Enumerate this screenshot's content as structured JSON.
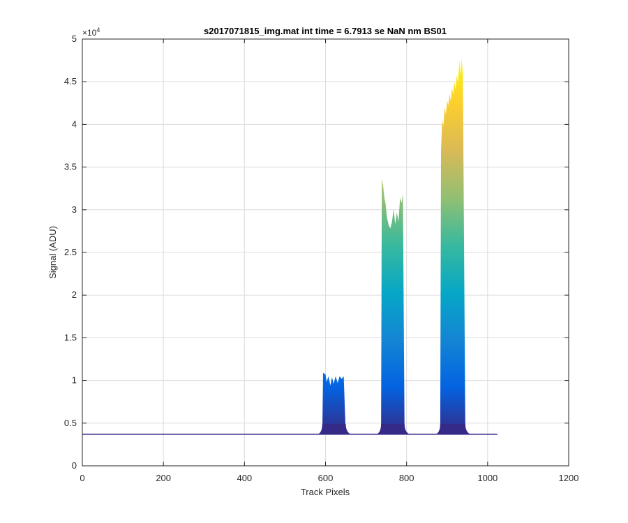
{
  "chart_data": {
    "type": "area",
    "title": "s2017071815_img.mat int time = 6.7913 se  NaN nm BS01",
    "xlabel": "Track Pixels",
    "ylabel": "Signal (ADU)",
    "xlim": [
      0,
      1200
    ],
    "ylim": [
      0,
      50000
    ],
    "y_exponent_label": "×10",
    "y_exponent_power": "4",
    "x_ticks": [
      {
        "value": 0,
        "label": "0"
      },
      {
        "value": 200,
        "label": "200"
      },
      {
        "value": 400,
        "label": "400"
      },
      {
        "value": 600,
        "label": "600"
      },
      {
        "value": 800,
        "label": "800"
      },
      {
        "value": 1000,
        "label": "1000"
      },
      {
        "value": 1200,
        "label": "1200"
      }
    ],
    "y_ticks": [
      {
        "value": 0,
        "label": "0"
      },
      {
        "value": 5000,
        "label": "0.5"
      },
      {
        "value": 10000,
        "label": "1"
      },
      {
        "value": 15000,
        "label": "1.5"
      },
      {
        "value": 20000,
        "label": "2"
      },
      {
        "value": 25000,
        "label": "2.5"
      },
      {
        "value": 30000,
        "label": "3"
      },
      {
        "value": 35000,
        "label": "3.5"
      },
      {
        "value": 40000,
        "label": "4"
      },
      {
        "value": 45000,
        "label": "4.5"
      },
      {
        "value": 50000,
        "label": "5"
      }
    ],
    "grid": true,
    "colormap": [
      "#352a87",
      "#0363e1",
      "#1485d4",
      "#06a7c6",
      "#38b99e",
      "#92bf73",
      "#d9ba56",
      "#fcce2e",
      "#f9fb0e"
    ],
    "baseline": 3700,
    "x_range": [
      1,
      1024
    ],
    "peaks": [
      {
        "x_start": 592,
        "x_end": 650,
        "values": [
          [
            594,
            10900
          ],
          [
            600,
            10700
          ],
          [
            603,
            9800
          ],
          [
            607,
            10500
          ],
          [
            612,
            9400
          ],
          [
            616,
            10400
          ],
          [
            620,
            9600
          ],
          [
            625,
            10500
          ],
          [
            630,
            9700
          ],
          [
            635,
            10500
          ],
          [
            640,
            10200
          ],
          [
            645,
            10500
          ]
        ]
      },
      {
        "x_start": 737,
        "x_end": 795,
        "values": [
          [
            739,
            33600
          ],
          [
            742,
            32800
          ],
          [
            745,
            31500
          ],
          [
            748,
            30700
          ],
          [
            752,
            29000
          ],
          [
            756,
            28200
          ],
          [
            760,
            27800
          ],
          [
            764,
            28600
          ],
          [
            768,
            30100
          ],
          [
            772,
            28300
          ],
          [
            776,
            29700
          ],
          [
            780,
            28600
          ],
          [
            784,
            31400
          ],
          [
            788,
            30800
          ],
          [
            791,
            31900
          ]
        ]
      },
      {
        "x_start": 883,
        "x_end": 945,
        "values": [
          [
            885,
            37000
          ],
          [
            888,
            40500
          ],
          [
            891,
            39800
          ],
          [
            894,
            42000
          ],
          [
            897,
            41200
          ],
          [
            900,
            42800
          ],
          [
            903,
            42200
          ],
          [
            906,
            43600
          ],
          [
            909,
            42700
          ],
          [
            912,
            44300
          ],
          [
            915,
            43500
          ],
          [
            918,
            45000
          ],
          [
            921,
            44100
          ],
          [
            924,
            45800
          ],
          [
            927,
            44900
          ],
          [
            930,
            47500
          ],
          [
            933,
            45800
          ],
          [
            936,
            47800
          ],
          [
            939,
            45600
          ]
        ]
      }
    ]
  }
}
